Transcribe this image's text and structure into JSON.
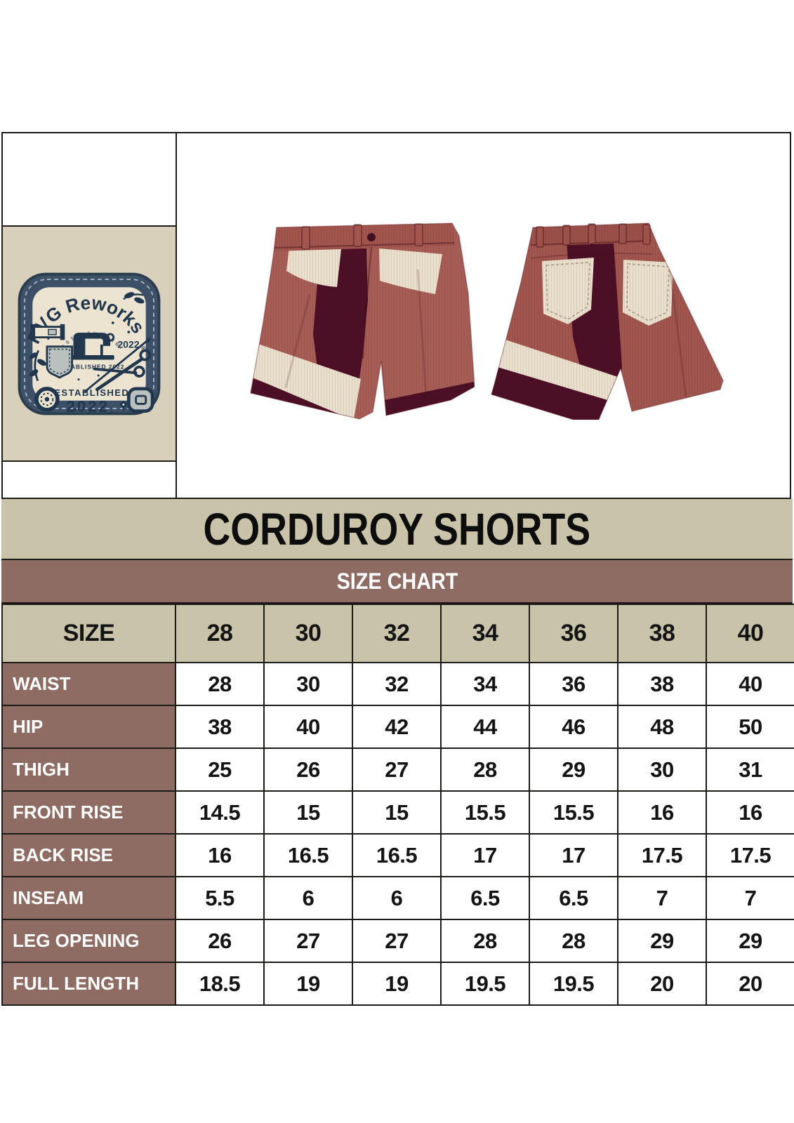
{
  "brand_logo": {
    "name": "RVG Reworks",
    "trademark": "®",
    "arc_subtext": "· E S T B L S H D  O R N ·",
    "machine_year": "2022",
    "established_small": "ESTABLISHED 2022",
    "established_word": "ESTABLISHED",
    "established_year": "2022"
  },
  "product": {
    "title": "CORDUROY SHORTS"
  },
  "size_chart": {
    "heading": "SIZE CHART",
    "columns": [
      "SIZE",
      "28",
      "30",
      "32",
      "34",
      "36",
      "38",
      "40"
    ],
    "rows": [
      {
        "label": "WAIST",
        "values": [
          "28",
          "30",
          "32",
          "34",
          "36",
          "38",
          "40"
        ]
      },
      {
        "label": "HIP",
        "values": [
          "38",
          "40",
          "42",
          "44",
          "46",
          "48",
          "50"
        ]
      },
      {
        "label": "THIGH",
        "values": [
          "25",
          "26",
          "27",
          "28",
          "29",
          "30",
          "31"
        ]
      },
      {
        "label": "FRONT RISE",
        "values": [
          "14.5",
          "15",
          "15",
          "15.5",
          "15.5",
          "16",
          "16"
        ]
      },
      {
        "label": "BACK RISE",
        "values": [
          "16",
          "16.5",
          "16.5",
          "17",
          "17",
          "17.5",
          "17.5"
        ]
      },
      {
        "label": "INSEAM",
        "values": [
          "5.5",
          "6",
          "6",
          "6.5",
          "6.5",
          "7",
          "7"
        ]
      },
      {
        "label": "LEG OPENING",
        "values": [
          "26",
          "27",
          "27",
          "28",
          "28",
          "29",
          "29"
        ]
      },
      {
        "label": "FULL LENGTH",
        "values": [
          "18.5",
          "19",
          "19",
          "19.5",
          "19.5",
          "20",
          "20"
        ]
      }
    ]
  },
  "colors": {
    "tan_bar": "#c9c3a9",
    "brown_bar": "#8e6c63",
    "table_border": "#1d1b18",
    "shorts_rose": "#a85e57",
    "shorts_maroon": "#4c0f26",
    "shorts_cream": "#ece3cf",
    "logo_patch_navy": "#3c5168",
    "logo_ink_navy": "#21374d",
    "logo_cell_background": "#d9d0bb",
    "logo_patch_cream": "#ece4d0"
  }
}
